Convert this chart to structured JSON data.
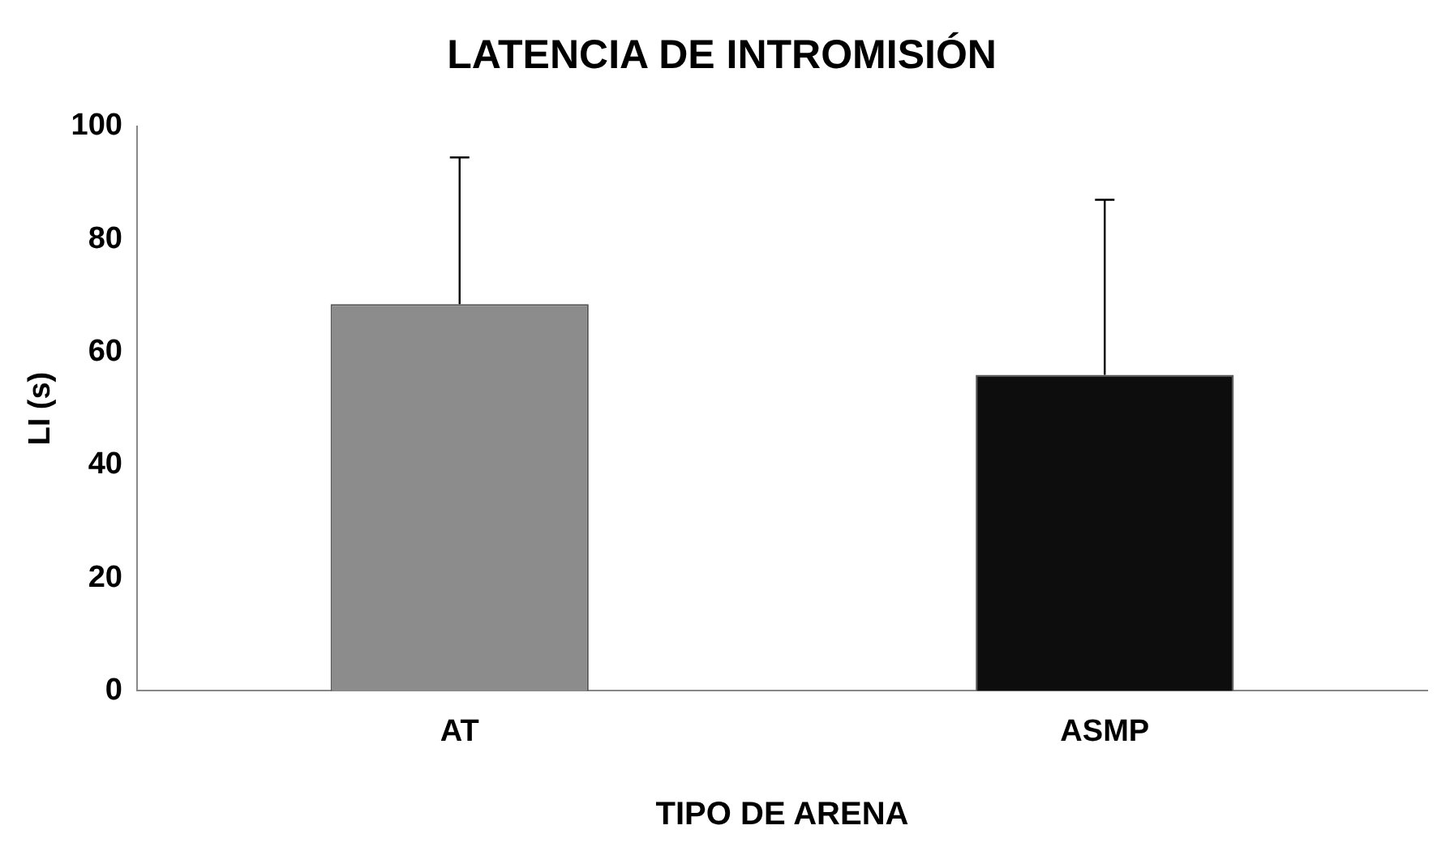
{
  "chart_data": {
    "type": "bar",
    "title": "LATENCIA DE INTROMISIÓN",
    "xlabel": "TIPO DE ARENA",
    "ylabel": "LI (s)",
    "categories": [
      "AT",
      "ASMP"
    ],
    "values": [
      68.5,
      56
    ],
    "colors": [
      "#8c8c8c",
      "#0d0d0d"
    ],
    "errors": [
      [
        68.5,
        94.5
      ],
      [
        56,
        87
      ]
    ],
    "ylim": [
      0,
      100
    ],
    "yticks": [
      0,
      20,
      40,
      60,
      80,
      100
    ],
    "grid": false,
    "legend": false
  }
}
